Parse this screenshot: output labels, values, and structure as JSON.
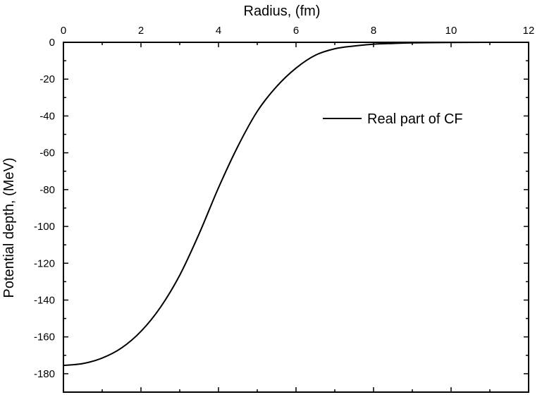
{
  "chart_data": {
    "type": "line",
    "title": "",
    "xlabel": "Radius, (fm)",
    "ylabel": "Potential depth, (MeV)",
    "xlim": [
      0,
      12
    ],
    "ylim": [
      -190,
      0
    ],
    "x_ticks": [
      0,
      2,
      4,
      6,
      8,
      10,
      12
    ],
    "y_ticks": [
      0,
      -20,
      -40,
      -60,
      -80,
      -100,
      -120,
      -140,
      -160,
      -180
    ],
    "x_axis_position": "top",
    "grid": false,
    "legend_position": "upper-right",
    "series": [
      {
        "name": "Real part of CF",
        "color": "#000000",
        "x": [
          0,
          0.5,
          1.0,
          1.5,
          2.0,
          2.5,
          3.0,
          3.5,
          4.0,
          4.5,
          5.0,
          5.5,
          6.0,
          6.5,
          7.0,
          7.5,
          8.0,
          8.5,
          9.0,
          10.0,
          11.0,
          12.0
        ],
        "y": [
          -175.5,
          -174.5,
          -171.5,
          -166.0,
          -157.0,
          -144.0,
          -126.5,
          -104.0,
          -79.0,
          -56.5,
          -37.5,
          -24.0,
          -14.0,
          -7.0,
          -3.5,
          -2.0,
          -1.0,
          -0.6,
          -0.3,
          -0.1,
          0,
          0
        ]
      }
    ]
  }
}
